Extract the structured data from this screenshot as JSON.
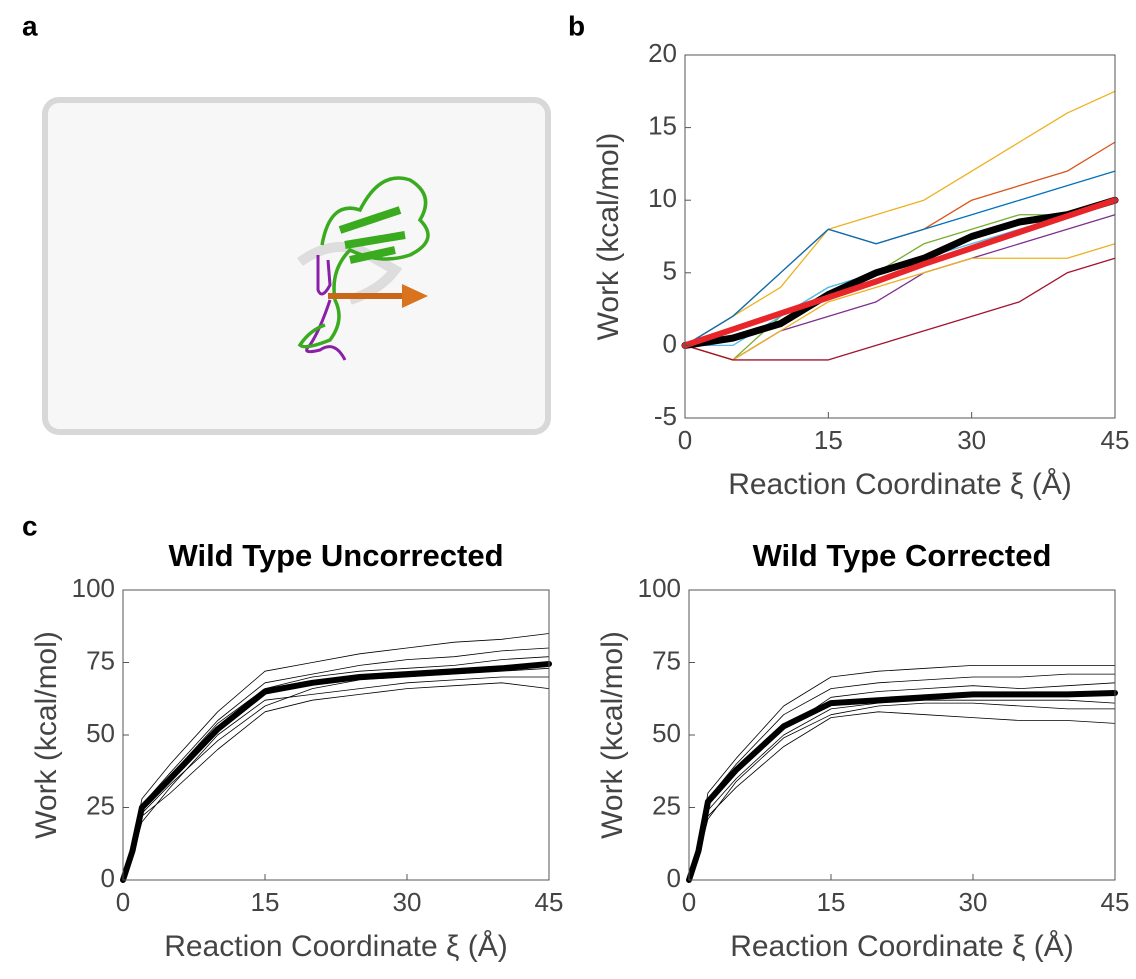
{
  "panel_labels": [
    "a",
    "b",
    "c"
  ],
  "chart_data": [
    {
      "type": "line",
      "xlabel": "Reaction Coordinate ξ (Å)",
      "ylabel": "Work (kcal/mol)",
      "x": [
        0,
        5,
        10,
        15,
        20,
        25,
        30,
        35,
        40,
        45
      ],
      "xlim": [
        0,
        45
      ],
      "xticks": [
        0,
        15,
        30,
        45
      ],
      "ylim": [
        -5,
        20
      ],
      "yticks": [
        -5,
        0,
        5,
        10,
        15,
        20
      ],
      "series": [
        {
          "color": "#edb120",
          "linewidth": 1.3,
          "values": [
            0,
            2,
            4,
            8,
            9,
            10,
            12,
            14,
            16,
            17.5
          ]
        },
        {
          "color": "#d95319",
          "linewidth": 1.3,
          "values": [
            0,
            2,
            5,
            8,
            7,
            8,
            10,
            11,
            12,
            14
          ]
        },
        {
          "color": "#0072bd",
          "linewidth": 1.3,
          "values": [
            0,
            2,
            5,
            8,
            7,
            8,
            9,
            10,
            11,
            12
          ]
        },
        {
          "color": "#77ac30",
          "linewidth": 1.3,
          "values": [
            0,
            -1,
            2,
            4,
            5,
            7,
            8,
            9,
            9,
            10
          ]
        },
        {
          "color": "#4dbeee",
          "linewidth": 1.3,
          "values": [
            0,
            0,
            2,
            4,
            5,
            6,
            7,
            8,
            9,
            10
          ]
        },
        {
          "color": "#7e2f8e",
          "linewidth": 1.3,
          "values": [
            0,
            -1,
            1,
            2,
            3,
            5,
            6,
            7,
            8,
            9
          ]
        },
        {
          "color": "#edb120",
          "linewidth": 1.3,
          "values": [
            0,
            -1,
            1,
            3,
            4,
            5,
            6,
            6,
            6,
            7
          ]
        },
        {
          "color": "#a2142f",
          "linewidth": 1.3,
          "values": [
            0,
            -1,
            -1,
            -1,
            0,
            1,
            2,
            3,
            5,
            6
          ]
        },
        {
          "color": "#000000",
          "linewidth": 7,
          "values": [
            0,
            0.5,
            1.5,
            3.5,
            5,
            6,
            7.5,
            8.5,
            9,
            10
          ]
        },
        {
          "color": "#e8262a",
          "linewidth": 6,
          "values": [
            0,
            1.1,
            2.2,
            3.3,
            4.4,
            5.6,
            6.7,
            7.8,
            8.9,
            10
          ]
        }
      ]
    },
    {
      "type": "line",
      "title": "Wild Type Uncorrected",
      "xlabel": "Reaction Coordinate ξ (Å)",
      "ylabel": "Work (kcal/mol)",
      "x": [
        0,
        1,
        2,
        5,
        10,
        15,
        20,
        25,
        30,
        35,
        40,
        45
      ],
      "xlim": [
        0,
        45
      ],
      "xticks": [
        0,
        15,
        30,
        45
      ],
      "ylim": [
        0,
        100
      ],
      "yticks": [
        0,
        25,
        50,
        75,
        100
      ],
      "series": [
        {
          "color": "#000000",
          "linewidth": 0.8,
          "values": [
            0,
            12,
            28,
            40,
            58,
            72,
            75,
            78,
            80,
            82,
            83,
            85
          ]
        },
        {
          "color": "#000000",
          "linewidth": 0.8,
          "values": [
            0,
            9,
            22,
            30,
            45,
            58,
            62,
            64,
            66,
            67,
            68,
            66
          ]
        },
        {
          "color": "#000000",
          "linewidth": 0.8,
          "values": [
            0,
            11,
            26,
            37,
            55,
            68,
            71,
            74,
            76,
            77,
            79,
            80
          ]
        },
        {
          "color": "#000000",
          "linewidth": 0.8,
          "values": [
            0,
            8,
            20,
            32,
            50,
            62,
            64,
            66,
            68,
            69,
            70,
            70
          ]
        },
        {
          "color": "#000000",
          "linewidth": 0.8,
          "values": [
            0,
            10,
            24,
            36,
            54,
            66,
            70,
            72,
            73,
            74,
            76,
            77
          ]
        },
        {
          "color": "#000000",
          "linewidth": 0.8,
          "values": [
            0,
            9,
            23,
            33,
            48,
            60,
            66,
            69,
            70,
            71,
            72,
            73
          ]
        },
        {
          "color": "#000000",
          "linewidth": 6,
          "values": [
            0,
            10,
            25,
            35,
            52,
            65,
            68,
            70,
            71,
            72,
            73,
            74.5
          ]
        }
      ]
    },
    {
      "type": "line",
      "title": "Wild Type Corrected",
      "xlabel": "Reaction Coordinate ξ (Å)",
      "ylabel": "Work (kcal/mol)",
      "x": [
        0,
        1,
        2,
        5,
        10,
        15,
        20,
        25,
        30,
        35,
        40,
        45
      ],
      "xlim": [
        0,
        45
      ],
      "xticks": [
        0,
        15,
        30,
        45
      ],
      "ylim": [
        0,
        100
      ],
      "yticks": [
        0,
        25,
        50,
        75,
        100
      ],
      "series": [
        {
          "color": "#000000",
          "linewidth": 0.8,
          "values": [
            0,
            12,
            30,
            42,
            60,
            70,
            72,
            73,
            74,
            74,
            74,
            74
          ]
        },
        {
          "color": "#000000",
          "linewidth": 0.8,
          "values": [
            0,
            9,
            22,
            32,
            46,
            56,
            58,
            57,
            56,
            55,
            55,
            54
          ]
        },
        {
          "color": "#000000",
          "linewidth": 0.8,
          "values": [
            0,
            11,
            28,
            40,
            57,
            66,
            68,
            69,
            70,
            70,
            71,
            71
          ]
        },
        {
          "color": "#000000",
          "linewidth": 0.8,
          "values": [
            0,
            8,
            21,
            34,
            49,
            57,
            60,
            61,
            61,
            60,
            59,
            59
          ]
        },
        {
          "color": "#000000",
          "linewidth": 0.8,
          "values": [
            0,
            10,
            26,
            37,
            52,
            63,
            65,
            66,
            67,
            66,
            67,
            68
          ]
        },
        {
          "color": "#000000",
          "linewidth": 0.8,
          "values": [
            0,
            9,
            24,
            35,
            50,
            59,
            61,
            62,
            62,
            62,
            62,
            61
          ]
        },
        {
          "color": "#000000",
          "linewidth": 6,
          "values": [
            0,
            10,
            27,
            38,
            53,
            61,
            62,
            63,
            64,
            64,
            64,
            64.5
          ]
        }
      ]
    }
  ]
}
